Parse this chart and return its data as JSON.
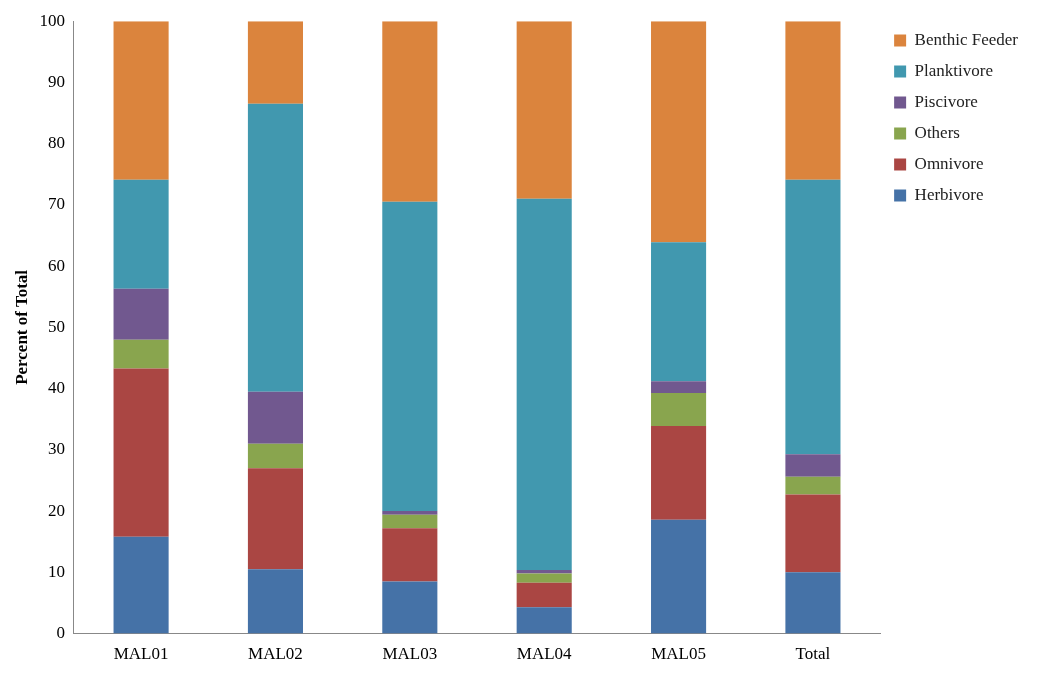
{
  "chart_data": {
    "type": "bar",
    "stacked": true,
    "ylabel": "Percent of Total",
    "categories": [
      "MAL01",
      "MAL02",
      "MAL03",
      "MAL04",
      "MAL05",
      "Total"
    ],
    "ylim": [
      0,
      100
    ],
    "yticks": [
      0,
      10,
      20,
      30,
      40,
      50,
      60,
      70,
      80,
      90,
      100
    ],
    "grid": false,
    "legend": "right",
    "series": [
      {
        "name": "Herbivore",
        "color": "#4572a7",
        "values": [
          15.8,
          10.5,
          8.5,
          4.3,
          18.6,
          10
        ]
      },
      {
        "name": "Omnivore",
        "color": "#aa4643",
        "values": [
          27.5,
          16.5,
          8.7,
          4.0,
          15.3,
          12.7
        ]
      },
      {
        "name": "Others",
        "color": "#89a54e",
        "values": [
          4.7,
          4.0,
          2.2,
          1.5,
          5.4,
          2.9
        ]
      },
      {
        "name": "Piscivore",
        "color": "#71588f",
        "values": [
          8.3,
          8.5,
          0.6,
          0.6,
          1.9,
          3.7
        ]
      },
      {
        "name": "Planktivore",
        "color": "#4198af",
        "values": [
          17.8,
          47,
          50.5,
          60.6,
          22.7,
          44.8
        ]
      },
      {
        "name": "Benthic Feeder",
        "color": "#db843d",
        "values": [
          25.9,
          13.5,
          29.5,
          29,
          36.1,
          25.9
        ]
      }
    ]
  }
}
